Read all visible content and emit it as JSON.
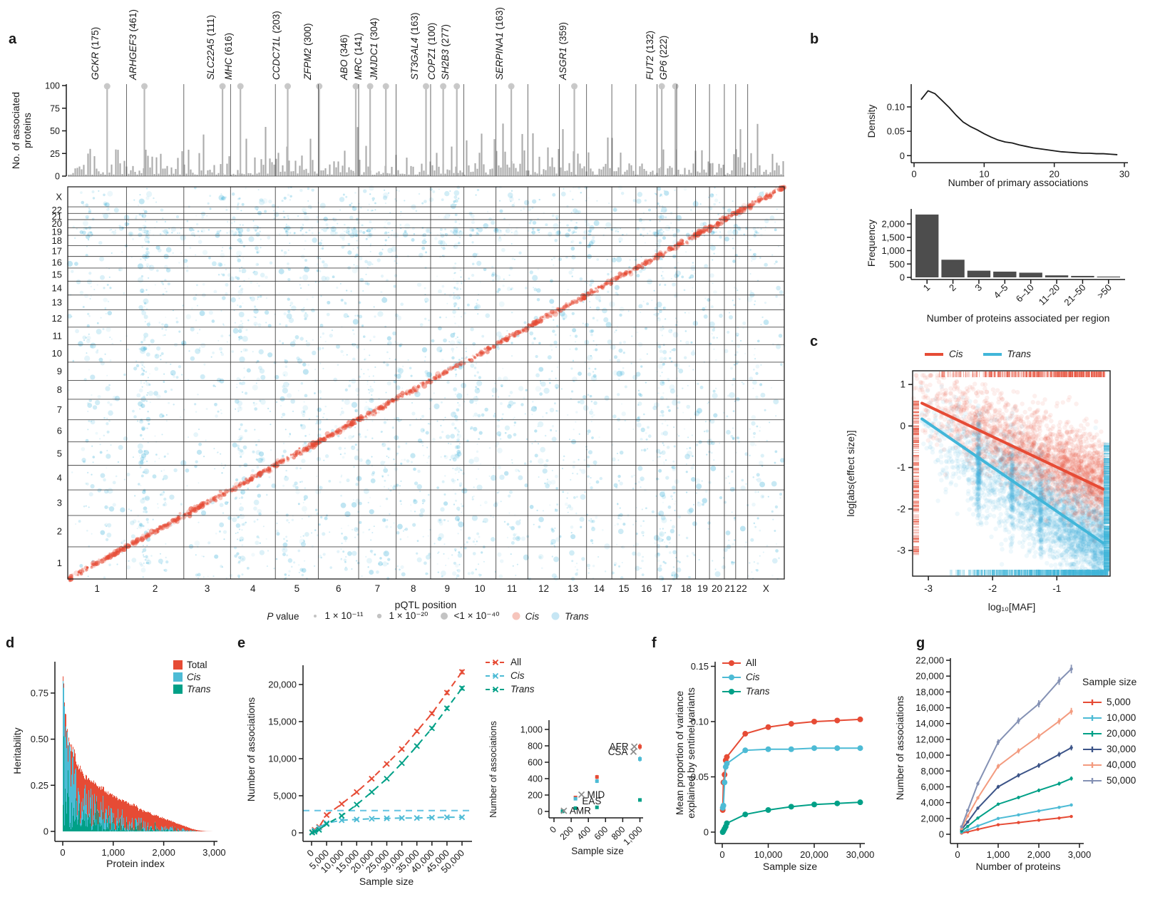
{
  "panel_labels": {
    "a": "a",
    "b": "b",
    "c": "c",
    "d": "d",
    "e": "e",
    "f": "f",
    "g": "g"
  },
  "colors": {
    "red": "#E64B35",
    "light_blue": "#4DBBD5",
    "teal": "#00A087",
    "navy": "#3C5488",
    "salmon": "#F39B7F",
    "lavender": "#8491B4",
    "bar_gray": "#ABABAB",
    "dark_bars": "#4D4D4D",
    "lollipop": "#C6C6C6",
    "axis": "#1A1A1A",
    "annotation_gray": "#8C8C8C",
    "trans_scatter": "#4FB8DC",
    "legend_cis_dot": "#F6C5BC",
    "legend_trans_dot": "#C6E6F4",
    "size_dot_gray": "#C3C3C3"
  },
  "chart_data": [
    {
      "id": "panel_a",
      "type": "scatter",
      "top_bars": {
        "type": "bar",
        "ylabel": "No. of associated\nproteins",
        "yticks": [
          "0",
          "25",
          "50",
          "75",
          "100"
        ],
        "ylim": [
          0,
          100
        ],
        "note": "grey bars = number of associated proteins per genomic region; labelled peaks capped at 100 with lollipop dots"
      },
      "gene_annotations": [
        {
          "gene": "GCKR",
          "count": 175,
          "x_frac": 0.055
        },
        {
          "gene": "ARHGEF3",
          "count": 461,
          "x_frac": 0.107
        },
        {
          "gene": "SLC22A5",
          "count": 111,
          "x_frac": 0.216
        },
        {
          "gene": "MHC",
          "count": 616,
          "x_frac": 0.241
        },
        {
          "gene": "CCDC71L",
          "count": 203,
          "x_frac": 0.307
        },
        {
          "gene": "ZFPM2",
          "count": 300,
          "x_frac": 0.351
        },
        {
          "gene": "ABO",
          "count": 346,
          "x_frac": 0.402
        },
        {
          "gene": "MRC",
          "count": 141,
          "x_frac": 0.422
        },
        {
          "gene": "JMJDC1",
          "count": 304,
          "x_frac": 0.444
        },
        {
          "gene": "ST3GAL4",
          "count": 163,
          "x_frac": 0.5
        },
        {
          "gene": "COPZ1",
          "count": 100,
          "x_frac": 0.524
        },
        {
          "gene": "SH2B3",
          "count": 277,
          "x_frac": 0.543
        },
        {
          "gene": "SERPINA1",
          "count": 163,
          "x_frac": 0.619
        },
        {
          "gene": "ASGR1",
          "count": 359,
          "x_frac": 0.707
        },
        {
          "gene": "FUT2",
          "count": 132,
          "x_frac": 0.829
        },
        {
          "gene": "GP6",
          "count": 222,
          "x_frac": 0.848
        }
      ],
      "grid": {
        "xlabel": "pQTL position",
        "chromosomes": [
          "1",
          "2",
          "3",
          "4",
          "5",
          "6",
          "7",
          "8",
          "9",
          "10",
          "11",
          "12",
          "13",
          "14",
          "15",
          "16",
          "17",
          "18",
          "19",
          "20",
          "21",
          "22",
          "X"
        ],
        "chrom_sizes_mb": [
          249,
          243,
          198,
          190,
          182,
          171,
          159,
          146,
          141,
          136,
          135,
          134,
          115,
          107,
          102,
          90,
          83,
          80,
          59,
          63,
          48,
          51,
          155
        ],
        "cis_pattern": "red points along genome diagonal",
        "trans_pattern": "blue points off-diagonal with vertical pleiotropic bands"
      },
      "legend": {
        "p_label": "P value",
        "size_labels": [
          "1 × 10⁻¹¹",
          "1 × 10⁻²⁰",
          "<1 × 10⁻⁴⁰"
        ],
        "cis_label": "Cis",
        "trans_label": "Trans"
      }
    },
    {
      "id": "panel_b_density",
      "type": "line",
      "xlabel": "Number of primary associations",
      "ylabel": "Density",
      "xticks": [
        0,
        10,
        20,
        30
      ],
      "ytick_vals": [
        0,
        0.05,
        0.1
      ],
      "ytick_labels": [
        "0",
        "0.05",
        "0.10"
      ],
      "xlim": [
        0,
        30
      ],
      "ylim": [
        0,
        0.145
      ],
      "x": [
        1,
        2,
        3,
        4,
        5,
        6,
        7,
        8,
        9,
        10,
        11,
        12,
        13,
        14,
        15,
        16,
        17,
        18,
        19,
        20,
        21,
        22,
        23,
        24,
        25,
        26,
        27,
        28,
        29
      ],
      "y": [
        0.115,
        0.133,
        0.127,
        0.113,
        0.099,
        0.083,
        0.069,
        0.06,
        0.053,
        0.045,
        0.038,
        0.032,
        0.028,
        0.026,
        0.022,
        0.019,
        0.016,
        0.014,
        0.012,
        0.01,
        0.008,
        0.007,
        0.006,
        0.005,
        0.005,
        0.004,
        0.004,
        0.003,
        0.002
      ]
    },
    {
      "id": "panel_b_frequency",
      "type": "bar",
      "xlabel": "Number of proteins associated per region",
      "ylabel": "Frequency",
      "categories": [
        "1",
        "2",
        "3",
        "4–5",
        "6–10",
        "11–20",
        "21–50",
        ">50"
      ],
      "values": [
        2350,
        660,
        250,
        215,
        175,
        75,
        55,
        30
      ],
      "ytick_vals": [
        0,
        500,
        1000,
        1500,
        2000
      ],
      "ytick_labels": [
        "0",
        "500",
        "1,000",
        "1,500",
        "2,000"
      ],
      "ylim": [
        0,
        2400
      ],
      "xtick_rotation": -45
    },
    {
      "id": "panel_c",
      "type": "scatter",
      "xlabel": "log₁₀[MAF]",
      "ylabel": "log[abs(effect size)]",
      "xticks": [
        -3,
        -2,
        -1
      ],
      "yticks": [
        1,
        0,
        -1,
        -2,
        -3
      ],
      "xlim": [
        -3.245,
        -0.17
      ],
      "ylim": [
        -3.62,
        1.33
      ],
      "legend": [
        {
          "label": "Cis",
          "color": "#E64B35"
        },
        {
          "label": "Trans",
          "color": "#41B6D9"
        }
      ],
      "trend_lines": [
        {
          "name": "Cis",
          "color": "#E64B35",
          "x": [
            -3.1,
            -0.28
          ],
          "y": [
            0.55,
            -1.52
          ]
        },
        {
          "name": "Trans",
          "color": "#41B6D9",
          "x": [
            -3.1,
            -0.28
          ],
          "y": [
            0.17,
            -2.82
          ]
        }
      ],
      "points_note": "~6,000 semi-transparent points (cis red above, trans blue below), procedurally regenerated",
      "rug": "cis red rug on top + left margins; trans blue rug on bottom + right margins"
    },
    {
      "id": "panel_d",
      "type": "area",
      "xlabel": "Protein index",
      "ylabel": "Heritability",
      "xtick_vals": [
        0,
        1000,
        2000,
        3000
      ],
      "xtick_labels": [
        "0",
        "1,000",
        "2,000",
        "3,000"
      ],
      "ytick_vals": [
        0,
        0.25,
        0.5,
        0.75
      ],
      "ytick_labels": [
        "0",
        "0.25",
        "0.50",
        "0.75"
      ],
      "xlim": [
        0,
        3080
      ],
      "ylim": [
        0,
        0.92
      ],
      "legend": [
        {
          "label": "Total",
          "color": "#E64B35",
          "italic": false
        },
        {
          "label": "Cis",
          "color": "#4DBBD5",
          "italic": true
        },
        {
          "label": "Trans",
          "color": "#00A087",
          "italic": true
        }
      ],
      "total_envelope": {
        "x": [
          0,
          30,
          60,
          100,
          150,
          200,
          300,
          400,
          500,
          600,
          700,
          800,
          900,
          1000,
          1100,
          1200,
          1300,
          1400,
          1500,
          1600,
          1700,
          1800,
          1900,
          2000,
          2100,
          2200,
          2300,
          2400,
          2500,
          2600,
          2700,
          2800,
          2900,
          3050
        ],
        "y": [
          0.88,
          0.7,
          0.6,
          0.52,
          0.465,
          0.42,
          0.36,
          0.32,
          0.29,
          0.265,
          0.245,
          0.23,
          0.21,
          0.195,
          0.183,
          0.17,
          0.155,
          0.143,
          0.13,
          0.115,
          0.105,
          0.095,
          0.085,
          0.075,
          0.065,
          0.055,
          0.045,
          0.035,
          0.025,
          0.015,
          0.008,
          0.004,
          0.001,
          0
        ]
      }
    },
    {
      "id": "panel_e_main",
      "type": "line",
      "xlabel": "Sample size",
      "ylabel": "Number of associations",
      "xtick_vals": [
        0,
        5000,
        10000,
        15000,
        20000,
        25000,
        30000,
        35000,
        40000,
        45000,
        50000
      ],
      "xtick_labels": [
        "0",
        "5,000",
        "10,000",
        "15,000",
        "20,000",
        "25,000",
        "30,000",
        "35,000",
        "40,000",
        "45,000",
        "50,000"
      ],
      "ytick_vals": [
        0,
        5000,
        10000,
        15000,
        20000
      ],
      "ytick_labels": [
        "0",
        "5,000",
        "10,000",
        "15,000",
        "20,000"
      ],
      "xlim": [
        0,
        51500
      ],
      "ylim": [
        0,
        22500
      ],
      "hline": 3000,
      "x": [
        200,
        1000,
        2500,
        5000,
        10000,
        15000,
        20000,
        25000,
        30000,
        35000,
        40000,
        45000,
        50000
      ],
      "series": [
        {
          "name": "All",
          "color": "#E64B35",
          "italic": false,
          "y": [
            100,
            400,
            800,
            2400,
            3900,
            5500,
            7300,
            9300,
            11300,
            13700,
            16100,
            18900,
            21700
          ]
        },
        {
          "name": "Cis",
          "color": "#4DBBD5",
          "italic": true,
          "y": [
            80,
            300,
            700,
            1300,
            1700,
            1800,
            1900,
            1950,
            2000,
            2000,
            2050,
            2100,
            2100
          ]
        },
        {
          "name": "Trans",
          "color": "#00A087",
          "italic": true,
          "y": [
            30,
            150,
            400,
            1200,
            2300,
            3800,
            5500,
            7300,
            9400,
            11700,
            14100,
            16800,
            19500
          ]
        }
      ]
    },
    {
      "id": "panel_e_inset",
      "type": "scatter",
      "xlabel": "Sample size",
      "ylabel": "Number of associations",
      "xtick_vals": [
        0,
        200,
        400,
        600,
        800,
        1000
      ],
      "xtick_labels": [
        "0",
        "200",
        "400",
        "600",
        "800",
        "1,000"
      ],
      "ytick_vals": [
        0,
        200,
        400,
        600,
        800,
        1000
      ],
      "ytick_labels": [
        "0",
        "200",
        "400",
        "600",
        "800",
        "1,000"
      ],
      "xlim": [
        0,
        1050
      ],
      "ylim": [
        0,
        1050
      ],
      "x": [
        100,
        250,
        500,
        1000
      ],
      "series": [
        {
          "name": "All",
          "color": "#E64B35",
          "y": [
            5,
            170,
            420,
            790
          ]
        },
        {
          "name": "Cis",
          "color": "#4DBBD5",
          "y": [
            4,
            155,
            370,
            640
          ]
        },
        {
          "name": "Trans",
          "color": "#00A087",
          "y": [
            1,
            40,
            50,
            140
          ]
        }
      ],
      "ancestry_annotations": [
        {
          "label": "AMR",
          "x": 115,
          "y": 8,
          "side": "right",
          "marker": true
        },
        {
          "label": "EAS",
          "x": 260,
          "y": 125,
          "side": "right",
          "marker": false
        },
        {
          "label": "MID",
          "x": 320,
          "y": 205,
          "side": "right",
          "marker": true
        },
        {
          "label": "CSA",
          "x": 925,
          "y": 728,
          "side": "left",
          "marker": true
        },
        {
          "label": "AFR",
          "x": 935,
          "y": 790,
          "side": "left",
          "marker": true
        }
      ]
    },
    {
      "id": "panel_f",
      "type": "line",
      "xlabel": "Sample size",
      "ylabel": "Mean proportion of variance\nexplained by sentinel variants",
      "xtick_vals": [
        0,
        10000,
        20000,
        30000
      ],
      "xtick_labels": [
        "0",
        "10,000",
        "20,000",
        "30,000"
      ],
      "ytick_vals": [
        0,
        0.05,
        0.1,
        0.15
      ],
      "ytick_labels": [
        "0",
        "0.05",
        "0.10",
        "0.15"
      ],
      "xlim": [
        0,
        31500
      ],
      "ylim": [
        0,
        0.158
      ],
      "x": [
        100,
        250,
        500,
        750,
        1000,
        5000,
        10000,
        15000,
        20000,
        25000,
        30000
      ],
      "series": [
        {
          "name": "All",
          "color": "#E64B35",
          "italic": false,
          "y": [
            0.02,
            0.045,
            0.052,
            0.065,
            0.068,
            0.089,
            0.095,
            0.098,
            0.1,
            0.101,
            0.102
          ]
        },
        {
          "name": "Cis",
          "color": "#4DBBD5",
          "italic": true,
          "y": [
            0.022,
            0.024,
            0.045,
            0.059,
            0.062,
            0.074,
            0.075,
            0.075,
            0.076,
            0.076,
            0.076
          ]
        },
        {
          "name": "Trans",
          "color": "#00A087",
          "italic": true,
          "y": [
            0.0,
            0.001,
            0.003,
            0.005,
            0.008,
            0.016,
            0.02,
            0.023,
            0.025,
            0.026,
            0.027
          ]
        }
      ]
    },
    {
      "id": "panel_g",
      "type": "line",
      "xlabel": "Number of proteins",
      "ylabel": "Number of associations",
      "legend_title": "Sample size",
      "xtick_vals": [
        0,
        1000,
        2000,
        3000
      ],
      "xtick_labels": [
        "0",
        "1,000",
        "2,000",
        "3,000"
      ],
      "ytick_vals": [
        0,
        2000,
        4000,
        6000,
        8000,
        10000,
        12000,
        14000,
        16000,
        18000,
        20000,
        22000
      ],
      "ytick_labels": [
        "0",
        "2,000",
        "4,000",
        "6,000",
        "8,000",
        "10,000",
        "12,000",
        "14,000",
        "16,000",
        "18,000",
        "20,000",
        "22,000"
      ],
      "xlim": [
        0,
        3080
      ],
      "ylim": [
        0,
        22500
      ],
      "x": [
        100,
        250,
        500,
        1000,
        1500,
        2000,
        2500,
        2800
      ],
      "series": [
        {
          "name": "5,000",
          "color": "#E64B35",
          "y": [
            150,
            300,
            620,
            1200,
            1480,
            1780,
            2050,
            2250
          ]
        },
        {
          "name": "10,000",
          "color": "#4DBBD5",
          "y": [
            250,
            550,
            1050,
            2000,
            2450,
            2950,
            3400,
            3700
          ]
        },
        {
          "name": "20,000",
          "color": "#00A087",
          "y": [
            400,
            1000,
            2050,
            3800,
            4650,
            5550,
            6400,
            7050
          ]
        },
        {
          "name": "30,000",
          "color": "#3C5488",
          "y": [
            600,
            1550,
            3300,
            6000,
            7450,
            8700,
            10100,
            10950
          ]
        },
        {
          "name": "40,000",
          "color": "#F39B7F",
          "y": [
            700,
            2300,
            4600,
            8600,
            10550,
            12400,
            14300,
            15550
          ]
        },
        {
          "name": "50,000",
          "color": "#8491B4",
          "y": [
            950,
            3000,
            6400,
            11650,
            14350,
            16500,
            19400,
            20900
          ]
        }
      ]
    }
  ]
}
